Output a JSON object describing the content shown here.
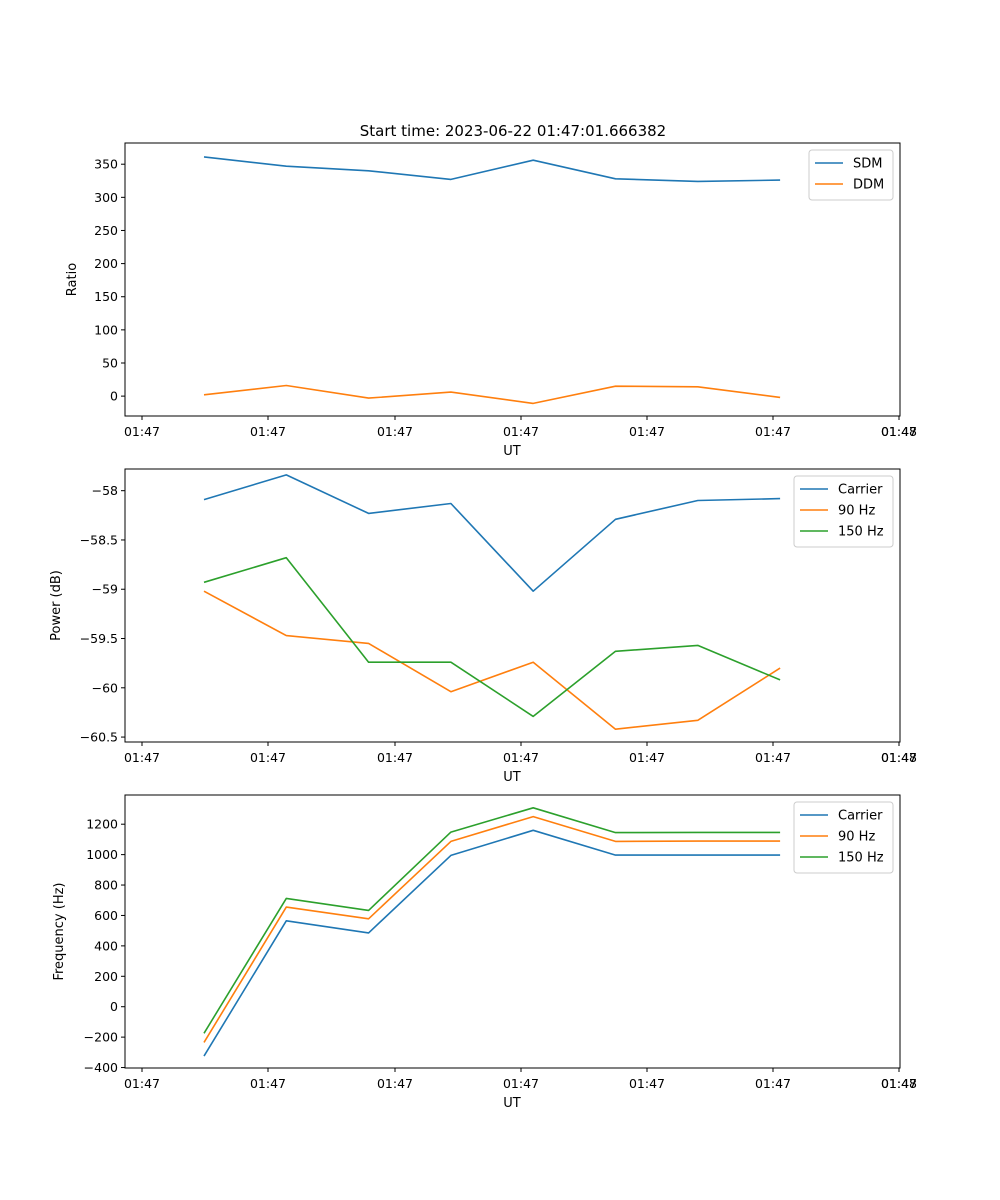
{
  "figure_title": "Start time: 2023-06-22 01:47:01.666382",
  "colors": {
    "blue": "#1f77b4",
    "orange": "#ff7f0e",
    "green": "#2ca02c"
  },
  "chart_data": [
    {
      "type": "line",
      "title": "Start time: 2023-06-22 01:47:01.666382",
      "xlabel": "UT",
      "ylabel": "Ratio",
      "x_tick_labels": [
        "01:47",
        "01:47",
        "01:47",
        "01:47",
        "01:47",
        "01:47",
        "01:47",
        "01:48"
      ],
      "x": [
        3.5,
        4.1,
        4.6,
        5.2,
        5.8,
        6.4,
        7.0,
        7.6
      ],
      "xlim": [
        0,
        14
      ],
      "ylim": [
        -30,
        382
      ],
      "y_ticks": [
        0,
        50,
        100,
        150,
        200,
        250,
        300,
        350
      ],
      "legend_position": "upper right",
      "series": [
        {
          "name": "SDM",
          "color": "#1f77b4",
          "values": [
            361,
            347,
            340,
            327,
            356,
            328,
            324,
            326
          ]
        },
        {
          "name": "DDM",
          "color": "#ff7f0e",
          "values": [
            2,
            16,
            -3,
            6,
            -11,
            15,
            14,
            -2
          ]
        }
      ]
    },
    {
      "type": "line",
      "xlabel": "UT",
      "ylabel": "Power (dB)",
      "x_tick_labels": [
        "01:47",
        "01:47",
        "01:47",
        "01:47",
        "01:47",
        "01:47",
        "01:47",
        "01:48"
      ],
      "x": [
        3.5,
        4.1,
        4.6,
        5.2,
        5.8,
        6.4,
        7.0,
        7.6
      ],
      "xlim": [
        0,
        14
      ],
      "ylim": [
        -60.55,
        -57.78
      ],
      "y_ticks": [
        -58.0,
        -58.5,
        -59.0,
        -59.5,
        -60.0,
        -60.5
      ],
      "legend_position": "upper right",
      "series": [
        {
          "name": "Carrier",
          "color": "#1f77b4",
          "values": [
            -58.09,
            -57.84,
            -58.23,
            -58.13,
            -59.02,
            -58.29,
            -58.1,
            -58.08
          ]
        },
        {
          "name": "90 Hz",
          "color": "#ff7f0e",
          "values": [
            -59.02,
            -59.47,
            -59.55,
            -60.04,
            -59.74,
            -60.42,
            -60.33,
            -59.8
          ]
        },
        {
          "name": "150 Hz",
          "color": "#2ca02c",
          "values": [
            -58.93,
            -58.68,
            -59.74,
            -59.74,
            -60.29,
            -59.63,
            -59.57,
            -59.92
          ]
        }
      ]
    },
    {
      "type": "line",
      "xlabel": "UT",
      "ylabel": "Frequency (Hz)",
      "x_tick_labels": [
        "01:47",
        "01:47",
        "01:47",
        "01:47",
        "01:47",
        "01:47",
        "01:47",
        "01:48"
      ],
      "x": [
        3.5,
        4.1,
        4.6,
        5.2,
        5.8,
        6.4,
        7.0,
        7.6
      ],
      "xlim": [
        0,
        14
      ],
      "ylim": [
        -403,
        1392
      ],
      "y_ticks": [
        -400,
        -200,
        0,
        200,
        400,
        600,
        800,
        1000,
        1200
      ],
      "legend_position": "upper right",
      "series": [
        {
          "name": "Carrier",
          "color": "#1f77b4",
          "values": [
            -325,
            565,
            485,
            995,
            1160,
            997,
            997,
            997
          ]
        },
        {
          "name": "90 Hz",
          "color": "#ff7f0e",
          "values": [
            -235,
            655,
            578,
            1087,
            1250,
            1087,
            1089,
            1089
          ]
        },
        {
          "name": "150 Hz",
          "color": "#2ca02c",
          "values": [
            -175,
            712,
            633,
            1148,
            1308,
            1145,
            1146,
            1146
          ]
        }
      ]
    }
  ]
}
